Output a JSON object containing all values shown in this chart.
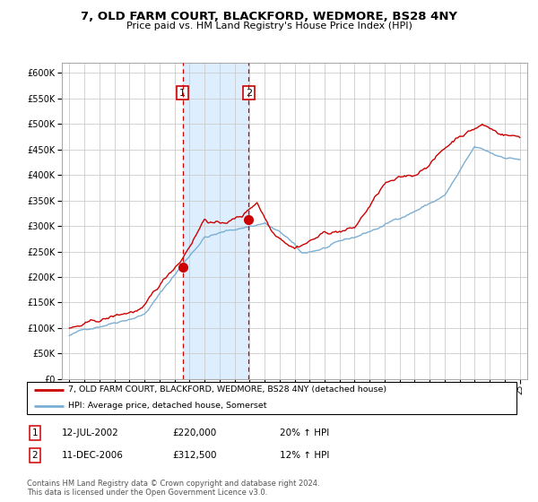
{
  "title": "7, OLD FARM COURT, BLACKFORD, WEDMORE, BS28 4NY",
  "subtitle": "Price paid vs. HM Land Registry's House Price Index (HPI)",
  "legend_line1": "7, OLD FARM COURT, BLACKFORD, WEDMORE, BS28 4NY (detached house)",
  "legend_line2": "HPI: Average price, detached house, Somerset",
  "footer1": "Contains HM Land Registry data © Crown copyright and database right 2024.",
  "footer2": "This data is licensed under the Open Government Licence v3.0.",
  "sale1_date": "12-JUL-2002",
  "sale1_price": "£220,000",
  "sale1_hpi": "20% ↑ HPI",
  "sale2_date": "11-DEC-2006",
  "sale2_price": "£312,500",
  "sale2_hpi": "12% ↑ HPI",
  "red_color": "#cc0000",
  "blue_color": "#7bafd4",
  "bg_shade_color": "#ddeeff",
  "grid_color": "#cccccc",
  "sale1_x": 2002.54,
  "sale1_y": 220000,
  "sale2_x": 2006.94,
  "sale2_y": 312500,
  "ylim": [
    0,
    620000
  ],
  "xlim": [
    1994.5,
    2025.5
  ]
}
